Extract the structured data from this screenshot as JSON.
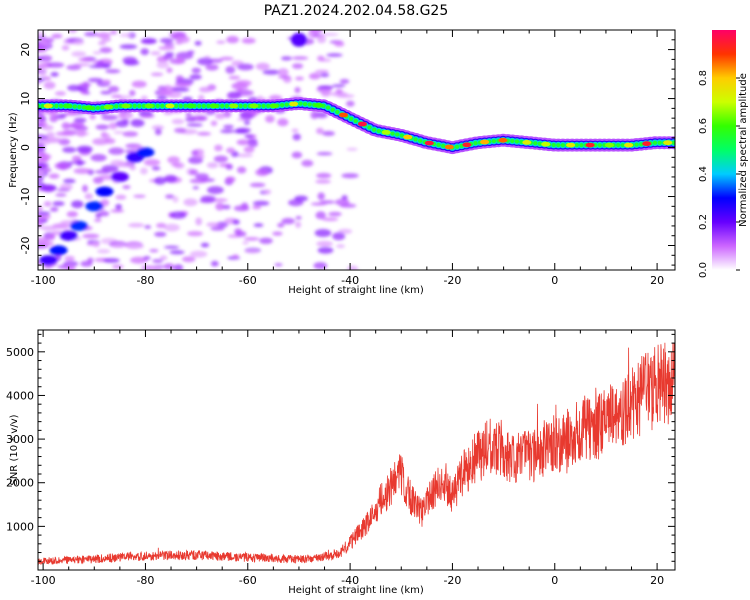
{
  "title": "PAZ1.2024.202.04.58.G25",
  "chart_data": [
    {
      "type": "heatmap",
      "title": "PAZ1.2024.202.04.58.G25",
      "xlabel": "Height of straight line (km)",
      "ylabel": "Frequency (Hz)",
      "xlim": [
        -101,
        23.5
      ],
      "ylim": [
        -25,
        24
      ],
      "x_ticks": [
        -100,
        -80,
        -60,
        -40,
        -20,
        0,
        20
      ],
      "y_ticks": [
        -20,
        -10,
        0,
        10,
        20
      ],
      "colorbar": {
        "label": "Normalized spectral amplitude",
        "range": [
          0,
          1
        ],
        "ticks": [
          0.0,
          0.2,
          0.4,
          0.6,
          0.8
        ],
        "colormap": [
          "#ffffff",
          "#cc66ff",
          "#6600ff",
          "#0000ff",
          "#00ccff",
          "#00ff66",
          "#33ff00",
          "#ccff00",
          "#ffcc00",
          "#ff3300",
          "#ff0066"
        ]
      },
      "ridge": {
        "x": [
          -100,
          -95,
          -90,
          -85,
          -80,
          -75,
          -70,
          -65,
          -60,
          -55,
          -50,
          -45,
          -40,
          -35,
          -30,
          -25,
          -20,
          -15,
          -10,
          -5,
          0,
          5,
          10,
          15,
          20,
          23
        ],
        "y": [
          8.5,
          8.5,
          8.0,
          8.5,
          8.5,
          8.5,
          8.5,
          8.5,
          8.5,
          8.5,
          9.0,
          8.5,
          6.0,
          3.5,
          2.5,
          1.0,
          0.0,
          1.0,
          1.5,
          1.0,
          0.5,
          0.5,
          0.5,
          0.5,
          1.0,
          1.0
        ]
      },
      "secondary_features": {
        "x": [
          -99,
          -97,
          -95,
          -93,
          -90,
          -88,
          -85,
          -82,
          -80
        ],
        "y": [
          -23,
          -21,
          -18,
          -16,
          -12,
          -9,
          -6,
          -2,
          -1
        ]
      }
    },
    {
      "type": "line",
      "xlabel": "Height of straight line (km)",
      "ylabel": "SNR (10 * v/v)",
      "xlim": [
        -101,
        23.5
      ],
      "ylim": [
        0,
        5500
      ],
      "x_ticks": [
        -100,
        -80,
        -60,
        -40,
        -20,
        0,
        20
      ],
      "y_ticks": [
        1000,
        2000,
        3000,
        4000,
        5000
      ],
      "color": "#e8392f",
      "trend": {
        "x": [
          -101,
          -90,
          -80,
          -70,
          -60,
          -50,
          -45,
          -42,
          -40,
          -38,
          -36,
          -34,
          -32,
          -30,
          -28,
          -26,
          -24,
          -22,
          -20,
          -18,
          -16,
          -14,
          -12,
          -10,
          -8,
          -6,
          -4,
          -2,
          0,
          2,
          4,
          6,
          8,
          10,
          12,
          14,
          16,
          18,
          20,
          22,
          23.5
        ],
        "y": [
          200,
          250,
          330,
          340,
          290,
          240,
          300,
          400,
          600,
          900,
          1200,
          1600,
          1900,
          2200,
          1600,
          1300,
          1800,
          2000,
          1700,
          2200,
          2500,
          2700,
          2900,
          2600,
          2500,
          2700,
          2600,
          2800,
          2900,
          2900,
          3100,
          3300,
          3200,
          3500,
          3500,
          3700,
          3900,
          4100,
          4200,
          4300,
          4500
        ]
      }
    }
  ]
}
